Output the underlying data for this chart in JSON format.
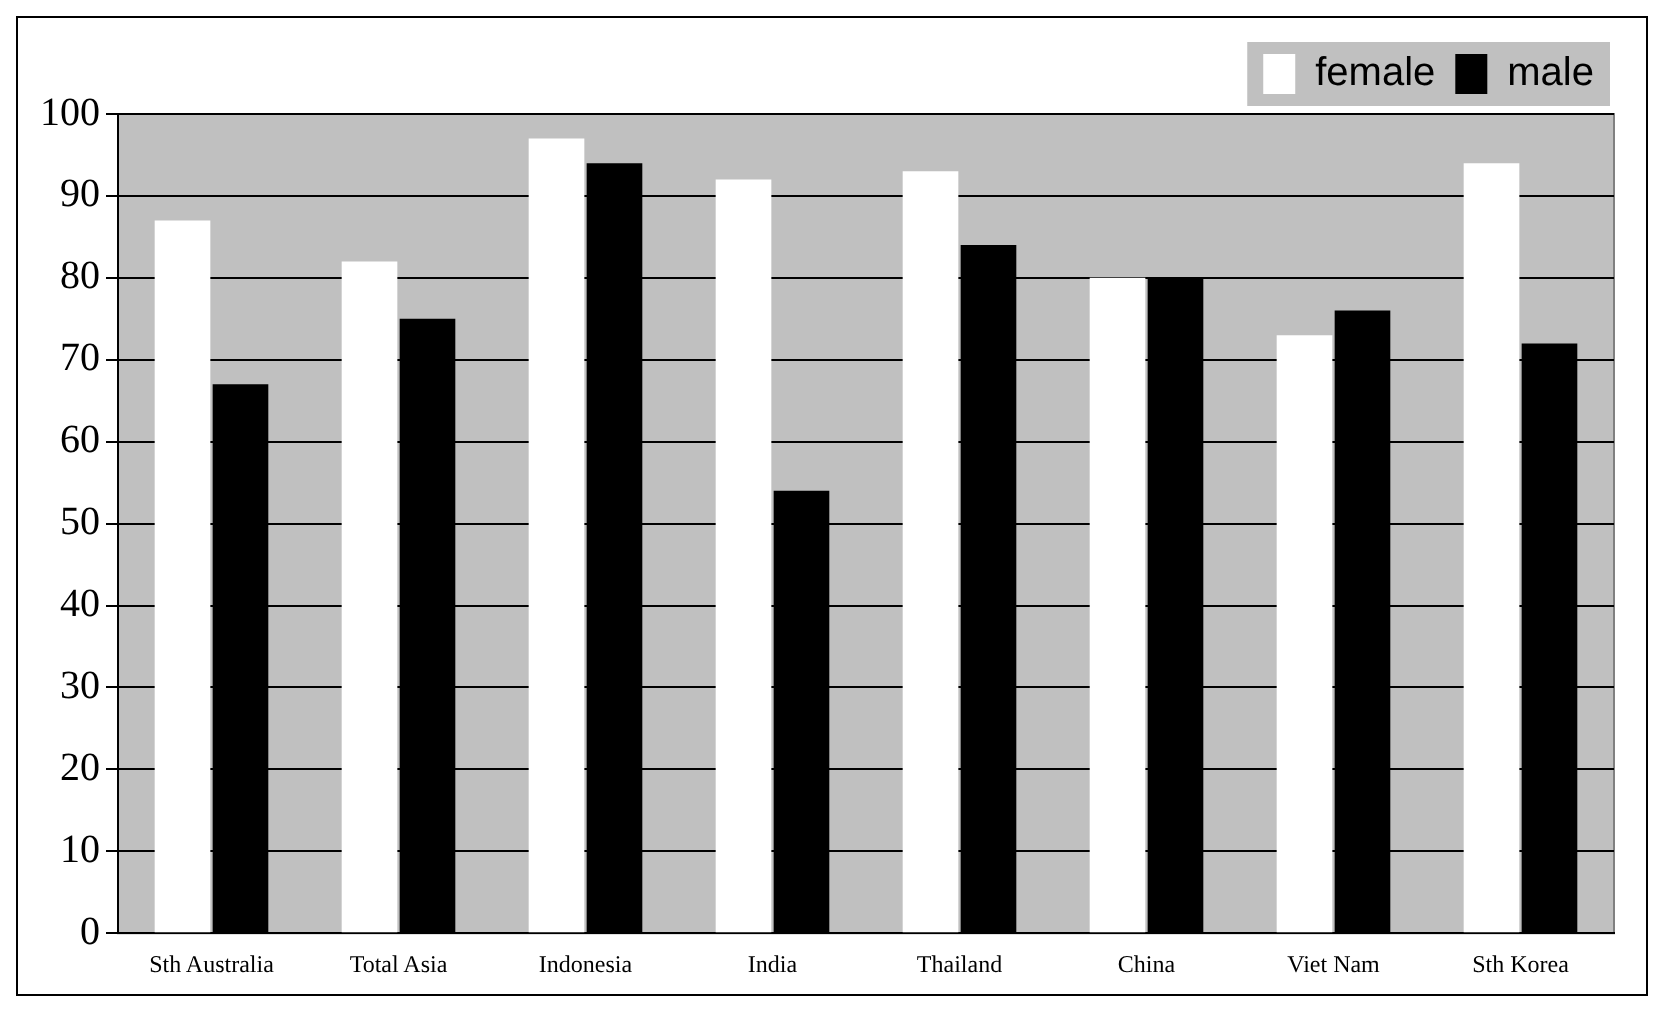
{
  "chart_data": {
    "type": "bar",
    "categories": [
      "Sth Australia",
      "Total Asia",
      "Indonesia",
      "India",
      "Thailand",
      "China",
      "Viet Nam",
      "Sth Korea"
    ],
    "series": [
      {
        "name": "female",
        "color": "#ffffff",
        "values": [
          87,
          82,
          97,
          92,
          93,
          80,
          73,
          94
        ]
      },
      {
        "name": "male",
        "color": "#000000",
        "values": [
          67,
          75,
          94,
          54,
          84,
          80,
          76,
          72
        ]
      }
    ],
    "ylim": [
      0,
      100
    ],
    "yticks": [
      0,
      10,
      20,
      30,
      40,
      50,
      60,
      70,
      80,
      90,
      100
    ],
    "grid": "y",
    "legend": "top right"
  }
}
